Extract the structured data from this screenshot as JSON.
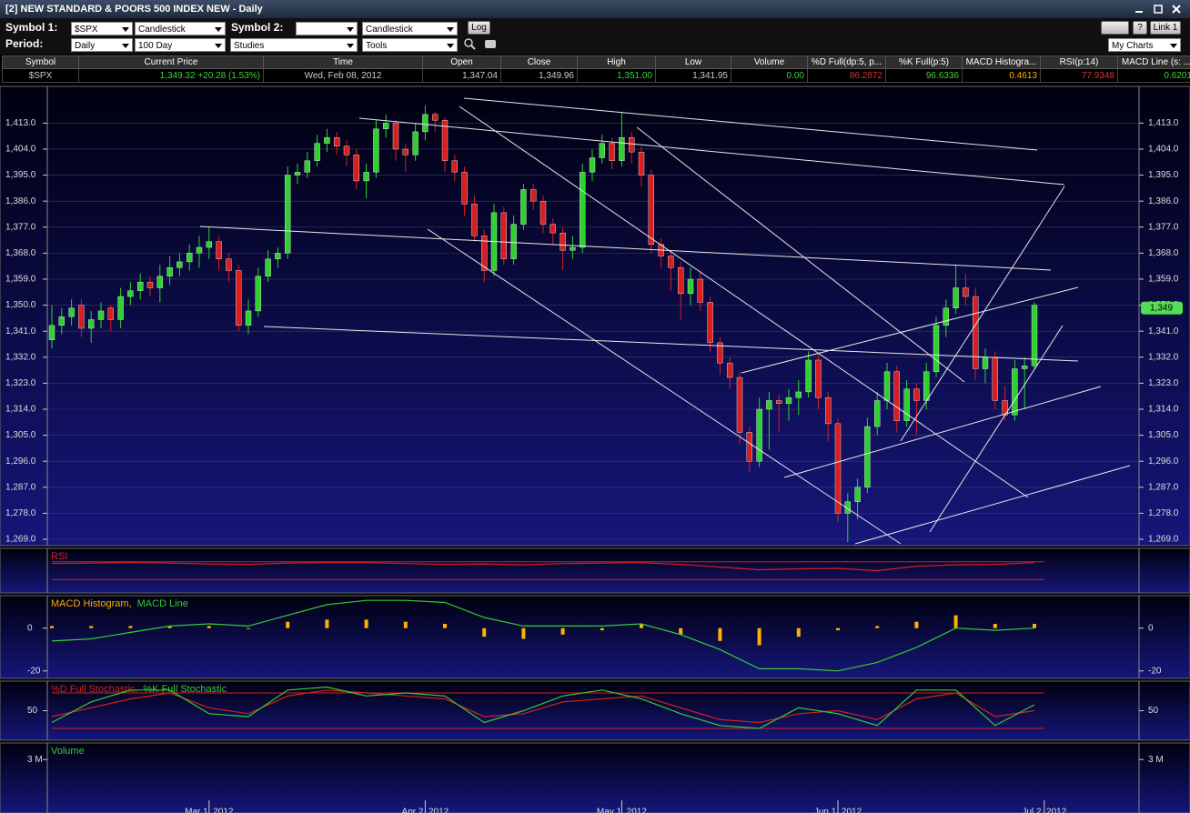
{
  "window": {
    "title": "[2] NEW STANDARD & POORS 500 INDEX NEW - Daily"
  },
  "toolbar": {
    "symbol1_label": "Symbol 1:",
    "symbol1": "$SPX",
    "chart_type1": "Candlestick",
    "symbol2_label": "Symbol 2:",
    "chart_type2": "Candlestick",
    "log": "Log",
    "help": "?",
    "link": "Link 1",
    "period_label": "Period:",
    "period": "Daily",
    "range": "100 Day",
    "studies": "Studies",
    "tools": "Tools",
    "my_charts": "My Charts"
  },
  "quote": {
    "headers": [
      "Symbol",
      "Current Price",
      "Time",
      "Open",
      "Close",
      "High",
      "Low",
      "Volume",
      "%D Full(dp:5, p...",
      "%K Full(p:5)",
      "MACD Histogra...",
      "RSI(p:14)",
      "MACD Line (s: ..."
    ],
    "values": [
      "$SPX",
      "1,349.32 +20.28 (1.53%)",
      "Wed, Feb 08, 2012",
      "1,347.04",
      "1,349.96",
      "1,351.00",
      "1,341.95",
      "0.00",
      "86.2872",
      "96.6336",
      "0.4613",
      "77.9348",
      "0.6201"
    ]
  },
  "chart_data": [
    {
      "type": "candlestick",
      "up_color": "#2fd12f",
      "down_color": "#d81e1e",
      "candles": [
        [
          1338,
          1350,
          1335,
          1343
        ],
        [
          1343,
          1349,
          1340,
          1346
        ],
        [
          1346,
          1352,
          1343,
          1349
        ],
        [
          1350,
          1352,
          1339,
          1342
        ],
        [
          1342,
          1348,
          1337,
          1345
        ],
        [
          1345,
          1351,
          1342,
          1348
        ],
        [
          1349,
          1350,
          1341,
          1345
        ],
        [
          1345,
          1356,
          1342,
          1353
        ],
        [
          1353,
          1358,
          1350,
          1355
        ],
        [
          1355,
          1361,
          1352,
          1358
        ],
        [
          1358,
          1360,
          1353,
          1356
        ],
        [
          1356,
          1364,
          1351,
          1360
        ],
        [
          1360,
          1367,
          1357,
          1363
        ],
        [
          1363,
          1368,
          1360,
          1365
        ],
        [
          1365,
          1371,
          1362,
          1368
        ],
        [
          1368,
          1374,
          1363,
          1370
        ],
        [
          1370,
          1377,
          1366,
          1372
        ],
        [
          1372,
          1374,
          1362,
          1366
        ],
        [
          1366,
          1368,
          1358,
          1362
        ],
        [
          1362,
          1364,
          1341,
          1343
        ],
        [
          1343,
          1352,
          1340,
          1348
        ],
        [
          1348,
          1363,
          1346,
          1360
        ],
        [
          1360,
          1369,
          1358,
          1366
        ],
        [
          1366,
          1370,
          1363,
          1368
        ],
        [
          1368,
          1398,
          1366,
          1395
        ],
        [
          1395,
          1399,
          1392,
          1396
        ],
        [
          1396,
          1403,
          1394,
          1400
        ],
        [
          1400,
          1409,
          1398,
          1406
        ],
        [
          1406,
          1411,
          1403,
          1408
        ],
        [
          1408,
          1410,
          1402,
          1405
        ],
        [
          1405,
          1407,
          1398,
          1402
        ],
        [
          1402,
          1404,
          1390,
          1393
        ],
        [
          1393,
          1399,
          1387,
          1396
        ],
        [
          1396,
          1414,
          1394,
          1411
        ],
        [
          1411,
          1416,
          1408,
          1413
        ],
        [
          1413,
          1414,
          1400,
          1404
        ],
        [
          1404,
          1406,
          1396,
          1402
        ],
        [
          1402,
          1413,
          1400,
          1410
        ],
        [
          1410,
          1419,
          1407,
          1416
        ],
        [
          1416,
          1417,
          1410,
          1414
        ],
        [
          1414,
          1415,
          1396,
          1400
        ],
        [
          1400,
          1402,
          1393,
          1396
        ],
        [
          1396,
          1398,
          1381,
          1385
        ],
        [
          1385,
          1388,
          1372,
          1374
        ],
        [
          1374,
          1376,
          1358,
          1362
        ],
        [
          1362,
          1385,
          1360,
          1382
        ],
        [
          1382,
          1384,
          1364,
          1366
        ],
        [
          1366,
          1381,
          1364,
          1378
        ],
        [
          1378,
          1392,
          1376,
          1390
        ],
        [
          1390,
          1392,
          1383,
          1386
        ],
        [
          1386,
          1388,
          1375,
          1378
        ],
        [
          1378,
          1380,
          1371,
          1375
        ],
        [
          1375,
          1377,
          1362,
          1369
        ],
        [
          1369,
          1374,
          1366,
          1370
        ],
        [
          1370,
          1399,
          1368,
          1396
        ],
        [
          1396,
          1404,
          1393,
          1401
        ],
        [
          1401,
          1409,
          1399,
          1406
        ],
        [
          1406,
          1408,
          1397,
          1400
        ],
        [
          1400,
          1417,
          1398,
          1408
        ],
        [
          1408,
          1410,
          1399,
          1403
        ],
        [
          1403,
          1405,
          1391,
          1395
        ],
        [
          1395,
          1397,
          1368,
          1371
        ],
        [
          1371,
          1373,
          1363,
          1367
        ],
        [
          1367,
          1369,
          1355,
          1363
        ],
        [
          1363,
          1365,
          1345,
          1354
        ],
        [
          1354,
          1363,
          1350,
          1359
        ],
        [
          1359,
          1362,
          1348,
          1351
        ],
        [
          1351,
          1353,
          1334,
          1337
        ],
        [
          1337,
          1339,
          1326,
          1330
        ],
        [
          1330,
          1332,
          1321,
          1325
        ],
        [
          1325,
          1327,
          1302,
          1306
        ],
        [
          1306,
          1308,
          1292,
          1296
        ],
        [
          1296,
          1318,
          1294,
          1314
        ],
        [
          1314,
          1320,
          1300,
          1317
        ],
        [
          1317,
          1319,
          1306,
          1316
        ],
        [
          1316,
          1321,
          1310,
          1318
        ],
        [
          1318,
          1324,
          1312,
          1320
        ],
        [
          1320,
          1334,
          1318,
          1331
        ],
        [
          1331,
          1333,
          1314,
          1318
        ],
        [
          1318,
          1320,
          1303,
          1309
        ],
        [
          1309,
          1311,
          1275,
          1278
        ],
        [
          1278,
          1285,
          1268,
          1282
        ],
        [
          1282,
          1290,
          1276,
          1287
        ],
        [
          1287,
          1311,
          1285,
          1308
        ],
        [
          1308,
          1320,
          1305,
          1317
        ],
        [
          1317,
          1330,
          1314,
          1327
        ],
        [
          1327,
          1329,
          1306,
          1310
        ],
        [
          1310,
          1324,
          1308,
          1321
        ],
        [
          1321,
          1323,
          1305,
          1317
        ],
        [
          1317,
          1330,
          1314,
          1327
        ],
        [
          1327,
          1346,
          1325,
          1343
        ],
        [
          1343,
          1352,
          1339,
          1349
        ],
        [
          1349,
          1364,
          1347,
          1356
        ],
        [
          1356,
          1361,
          1350,
          1353
        ],
        [
          1353,
          1356,
          1324,
          1328
        ],
        [
          1328,
          1335,
          1323,
          1332
        ],
        [
          1332,
          1334,
          1314,
          1317
        ],
        [
          1317,
          1322,
          1310,
          1312
        ],
        [
          1312,
          1331,
          1310,
          1328
        ],
        [
          1328,
          1332,
          1314,
          1329
        ],
        [
          1329,
          1351,
          1328,
          1350
        ]
      ],
      "ylim": [
        1266.8,
        1425.7
      ],
      "yticks": [
        {
          "value": 1269,
          "label": "1,269.0"
        },
        {
          "value": 1278,
          "label": "1,278.0"
        },
        {
          "value": 1287,
          "label": "1,287.0"
        },
        {
          "value": 1296,
          "label": "1,296.0"
        },
        {
          "value": 1305,
          "label": "1,305.0"
        },
        {
          "value": 1314,
          "label": "1,314.0"
        },
        {
          "value": 1323,
          "label": "1,323.0"
        },
        {
          "value": 1332,
          "label": "1,332.0"
        },
        {
          "value": 1341,
          "label": "1,341.0"
        },
        {
          "value": 1350,
          "label": "1,350.0"
        },
        {
          "value": 1359,
          "label": "1,359.0"
        },
        {
          "value": 1368,
          "label": "1,368.0"
        },
        {
          "value": 1377,
          "label": "1,377.0"
        },
        {
          "value": 1386,
          "label": "1,386.0"
        },
        {
          "value": 1395,
          "label": "1,395.0"
        },
        {
          "value": 1404,
          "label": "1,404.0"
        },
        {
          "value": 1413,
          "label": "1,413.0"
        }
      ],
      "last_price": {
        "value": 1349,
        "label": "1,349"
      },
      "xticks": [
        {
          "value": 16,
          "label": "Mar 1, 2012"
        },
        {
          "value": 38,
          "label": "Apr 2, 2012"
        },
        {
          "value": 58,
          "label": "May 1, 2012"
        },
        {
          "value": 80,
          "label": "Jun 1, 2012"
        },
        {
          "value": 101,
          "label": "Jul 2, 2012"
        }
      ]
    },
    {
      "type": "line",
      "title": "RSI",
      "ylim": [
        0,
        100
      ],
      "levels": [
        30,
        70
      ],
      "series": [
        {
          "name": "RSI",
          "color": "#d42020",
          "values": [
            66,
            67,
            68,
            67,
            65,
            64,
            67,
            68,
            68,
            66,
            64,
            65,
            63,
            66,
            67,
            68,
            64,
            58,
            52,
            54,
            55,
            50,
            60,
            63,
            64,
            68
          ]
        }
      ]
    },
    {
      "type": "bar_line",
      "ylim": [
        -23.5,
        15.2
      ],
      "yticks": [
        -20,
        0
      ],
      "series": [
        {
          "name": "MACD Histogram,",
          "color": "#ffb000",
          "values": [
            1,
            1,
            1,
            1,
            1,
            0,
            3,
            4,
            4,
            3,
            2,
            -4,
            -5,
            -3,
            -1,
            2,
            -3,
            -6,
            -8,
            -4,
            -1,
            1,
            3,
            6,
            2,
            2
          ]
        },
        {
          "name": "MACD Line",
          "color": "#33cc33",
          "values": [
            -6,
            -5,
            -2,
            1,
            2,
            1,
            6,
            11,
            13,
            13,
            12,
            5,
            1,
            1,
            1,
            2,
            -3,
            -10,
            -19,
            -19,
            -20,
            -16,
            -9,
            0,
            -1,
            0
          ]
        }
      ]
    },
    {
      "type": "line",
      "ylim": [
        0,
        100
      ],
      "yticks": [
        50
      ],
      "levels": [
        20,
        80
      ],
      "series": [
        {
          "name": "%D Full Stochastic,",
          "color": "#d42020",
          "values": [
            40,
            55,
            70,
            80,
            55,
            45,
            75,
            85,
            80,
            75,
            70,
            40,
            45,
            65,
            70,
            75,
            55,
            35,
            30,
            45,
            50,
            35,
            70,
            80,
            40,
            50
          ]
        },
        {
          "name": "%K Full Stochastic",
          "color": "#33cc33",
          "values": [
            30,
            65,
            85,
            85,
            45,
            40,
            85,
            90,
            75,
            80,
            75,
            30,
            50,
            75,
            85,
            70,
            45,
            25,
            20,
            55,
            45,
            25,
            85,
            85,
            25,
            60
          ]
        }
      ]
    },
    {
      "type": "bar",
      "title": "Volume",
      "ylim": [
        0,
        3930000
      ],
      "yticks": [
        {
          "value": 3000000,
          "label": "3 M"
        }
      ]
    }
  ]
}
